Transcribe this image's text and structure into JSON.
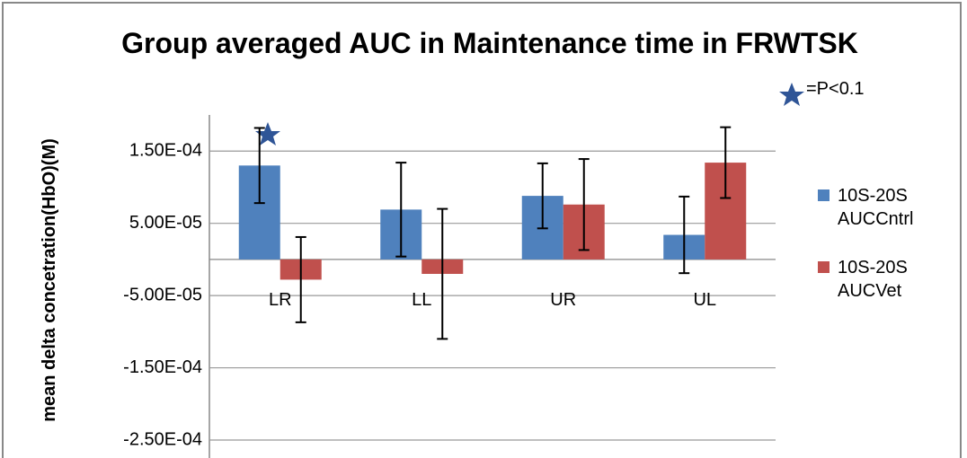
{
  "chart_data": {
    "type": "bar",
    "title": "Group averaged AUC in Maintenance time in FRWTSK",
    "y_label": "mean delta concetration(HbO)(M)",
    "annotation": "=P<0.1",
    "categories": [
      "LR",
      "LL",
      "UR",
      "UL"
    ],
    "series": [
      {
        "name": "10S-20S AUCCntrl",
        "color": "#4f81bd",
        "values": [
          0.00013,
          6.9e-05,
          8.8e-05,
          3.4e-05
        ],
        "errors": [
          5.2e-05,
          6.5e-05,
          4.5e-05,
          5.3e-05
        ]
      },
      {
        "name": "10S-20S AUCVet",
        "color": "#c0504d",
        "values": [
          -2.8e-05,
          -2e-05,
          7.6e-05,
          0.000134
        ],
        "errors": [
          5.9e-05,
          9e-05,
          6.3e-05,
          4.9e-05
        ]
      }
    ],
    "ylim": [
      -0.00025,
      0.0002
    ],
    "yticks": [
      {
        "value": -0.00025,
        "label": "-2.50E-04"
      },
      {
        "value": -0.00015,
        "label": "-1.50E-04"
      },
      {
        "value": -5e-05,
        "label": "-5.00E-05"
      },
      {
        "value": 5e-05,
        "label": "5.00E-05"
      },
      {
        "value": 0.00015,
        "label": "1.50E-04"
      }
    ],
    "grid": true
  }
}
